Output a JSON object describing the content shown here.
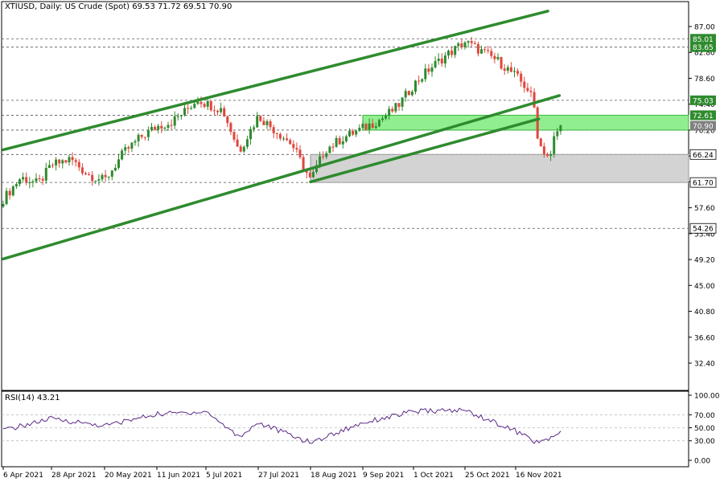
{
  "header": {
    "symbol_line": "XTIUSD, Daily:  US Crude (Spot)  69.53 71.72 69.51 70.90"
  },
  "colors": {
    "bull": "#2e8b2e",
    "bear": "#e0463c",
    "channel": "#2e8b2e",
    "green_zone": "#90ee90",
    "grey_zone": "#d3d3d3",
    "rsi_line": "#5b2a86",
    "grid_dash": "#555555"
  },
  "rsi": {
    "label": "RSI(14) 43.21",
    "scale_labels": [
      "100.00",
      "70.00",
      "50.00",
      "30.00",
      "0.00"
    ],
    "levels": [
      100,
      70,
      50,
      30,
      0
    ]
  },
  "chart_data": {
    "type": "candlestick",
    "title": "XTIUSD, Daily:  US Crude (Spot)",
    "ohlc_last": {
      "open": 69.53,
      "high": 71.72,
      "low": 69.51,
      "close": 70.9
    },
    "x_tick_labels": [
      "6 Apr 2021",
      "28 Apr 2021",
      "20 May 2021",
      "11 Jun 2021",
      "5 Jul 2021",
      "27 Jul 2021",
      "18 Aug 2021",
      "9 Sep 2021",
      "1 Oct 2021",
      "25 Oct 2021",
      "16 Nov 2021"
    ],
    "y_tick_labels": [
      "87.00",
      "82.80",
      "78.60",
      "74.40",
      "70.20",
      "66.00",
      "61.80",
      "57.60",
      "53.40",
      "49.20",
      "45.00",
      "40.80",
      "36.60",
      "32.40"
    ],
    "y_ticks": [
      87.0,
      82.8,
      78.6,
      74.4,
      70.2,
      66.0,
      61.8,
      57.6,
      53.4,
      49.2,
      45.0,
      40.8,
      36.6,
      32.4
    ],
    "ylim": [
      28.3,
      89.5
    ],
    "price_tags": [
      {
        "label": "85.01",
        "value": 85.01,
        "style": "green"
      },
      {
        "label": "83.65",
        "value": 83.65,
        "style": "green"
      },
      {
        "label": "75.03",
        "value": 75.03,
        "style": "green"
      },
      {
        "label": "72.61",
        "value": 72.61,
        "style": "green"
      },
      {
        "label": "70.90",
        "value": 70.9,
        "style": "grey"
      },
      {
        "label": "66.24",
        "value": 66.24,
        "style": "none"
      },
      {
        "label": "61.70",
        "value": 61.7,
        "style": "none"
      },
      {
        "label": "54.26",
        "value": 54.26,
        "style": "none"
      }
    ],
    "horizontal_levels": [
      85.01,
      83.65,
      75.03,
      72.61,
      70.2,
      66.24,
      61.7,
      54.26
    ],
    "zones": [
      {
        "name": "resistance",
        "from": 70.2,
        "to": 72.61,
        "start": "9 Sep 2021",
        "color": "green"
      },
      {
        "name": "support",
        "from": 61.7,
        "to": 66.24,
        "start": "18 Aug 2021",
        "color": "grey"
      }
    ],
    "trendlines": [
      {
        "name": "channel-upper",
        "from": {
          "date": "6 Apr 2021",
          "price": 67.0
        },
        "to": {
          "date": "30 Nov 2021",
          "price": 89.5
        }
      },
      {
        "name": "channel-middle",
        "from": {
          "date": "6 Apr 2021",
          "price": 49.3
        },
        "to": {
          "date": "5 Dec 2021",
          "price": 75.8
        }
      },
      {
        "name": "channel-lower",
        "from": {
          "date": "18 Aug 2021",
          "price": 61.8
        },
        "to": {
          "date": "26 Nov 2021",
          "price": 72.0
        }
      }
    ],
    "price_path": [
      [
        "6 Apr 2021",
        59.0
      ],
      [
        "14 Apr 2021",
        62.5
      ],
      [
        "22 Apr 2021",
        61.5
      ],
      [
        "28 Apr 2021",
        64.5
      ],
      [
        "6 May 2021",
        65.5
      ],
      [
        "13 May 2021",
        63.0
      ],
      [
        "20 May 2021",
        62.0
      ],
      [
        "28 May 2021",
        66.5
      ],
      [
        "4 Jun 2021",
        69.0
      ],
      [
        "11 Jun 2021",
        70.8
      ],
      [
        "18 Jun 2021",
        71.5
      ],
      [
        "25 Jun 2021",
        73.3
      ],
      [
        "1 Jul 2021",
        75.3
      ],
      [
        "5 Jul 2021",
        74.5
      ],
      [
        "12 Jul 2021",
        73.5
      ],
      [
        "19 Jul 2021",
        66.8
      ],
      [
        "27 Jul 2021",
        72.5
      ],
      [
        "2 Aug 2021",
        70.5
      ],
      [
        "10 Aug 2021",
        68.0
      ],
      [
        "18 Aug 2021",
        62.0
      ],
      [
        "24 Aug 2021",
        67.0
      ],
      [
        "1 Sep 2021",
        69.0
      ],
      [
        "9 Sep 2021",
        70.5
      ],
      [
        "17 Sep 2021",
        72.0
      ],
      [
        "24 Sep 2021",
        74.0
      ],
      [
        "1 Oct 2021",
        77.5
      ],
      [
        "8 Oct 2021",
        80.0
      ],
      [
        "15 Oct 2021",
        82.0
      ],
      [
        "25 Oct 2021",
        84.5
      ],
      [
        "1 Nov 2021",
        83.0
      ],
      [
        "8 Nov 2021",
        81.5
      ],
      [
        "16 Nov 2021",
        79.0
      ],
      [
        "22 Nov 2021",
        76.5
      ],
      [
        "24 Nov 2021",
        74.0
      ],
      [
        "26 Nov 2021",
        68.0
      ],
      [
        "1 Dec 2021",
        65.5
      ],
      [
        "3 Dec 2021",
        69.5
      ],
      [
        "6 Dec 2021",
        70.9
      ]
    ],
    "rsi_path": [
      [
        "6 Apr 2021",
        46
      ],
      [
        "28 Apr 2021",
        64
      ],
      [
        "20 May 2021",
        53
      ],
      [
        "11 Jun 2021",
        71
      ],
      [
        "5 Jul 2021",
        75
      ],
      [
        "19 Jul 2021",
        36
      ],
      [
        "27 Jul 2021",
        58
      ],
      [
        "18 Aug 2021",
        27
      ],
      [
        "9 Sep 2021",
        58
      ],
      [
        "1 Oct 2021",
        75
      ],
      [
        "25 Oct 2021",
        77
      ],
      [
        "16 Nov 2021",
        45
      ],
      [
        "26 Nov 2021",
        26
      ],
      [
        "6 Dec 2021",
        43
      ]
    ]
  }
}
